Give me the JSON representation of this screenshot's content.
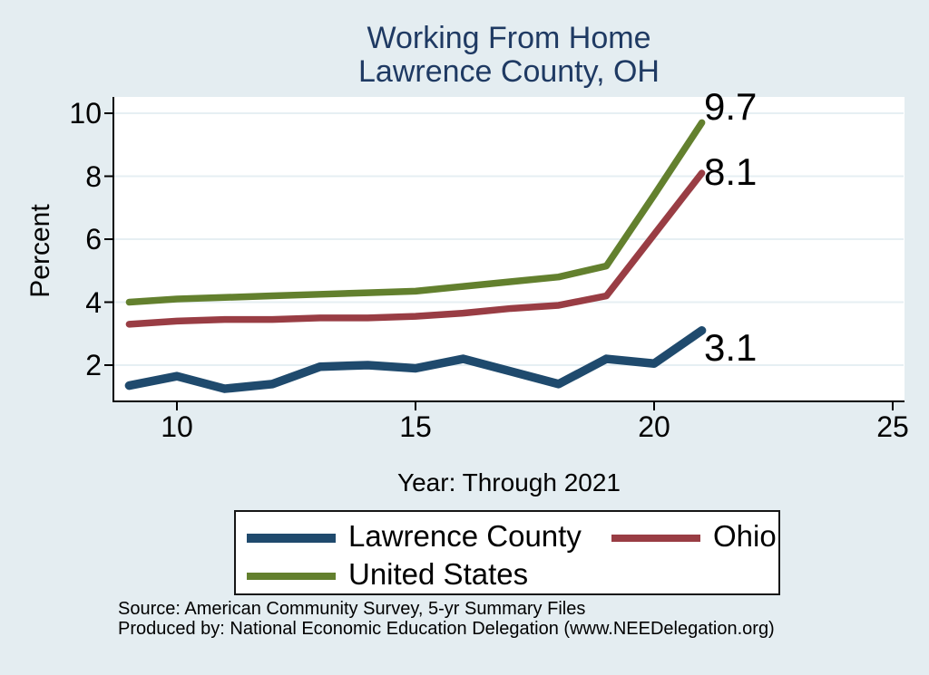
{
  "title": {
    "line1": "Working From Home",
    "line2": "Lawrence County, OH"
  },
  "axes": {
    "x_title": "Year: Through 2021",
    "y_title": "Percent"
  },
  "source": {
    "line1": "Source: American Community Survey, 5-yr Summary Files",
    "line2": "Produced by: National Economic Education Delegation (www.NEEDelegation.org)"
  },
  "colors": {
    "background": "#e4edf1",
    "plot_background": "#ffffff",
    "title_text": "#1f3a63",
    "gridline": "#e6eff3",
    "axis": "#000000",
    "lawrence_county": "#1f4a6d",
    "ohio": "#993d44",
    "united_states": "#63802e"
  },
  "chart_data": {
    "type": "line",
    "title": "Working From Home",
    "subtitle": "Lawrence County, OH",
    "xlabel": "Year: Through 2021",
    "ylabel": "Percent",
    "x": [
      9,
      10,
      11,
      12,
      13,
      14,
      15,
      16,
      17,
      18,
      19,
      20,
      21
    ],
    "x_ticks": [
      10,
      15,
      20,
      25
    ],
    "y_ticks": [
      2,
      4,
      6,
      8,
      10
    ],
    "xlim": [
      8.6,
      25.3
    ],
    "ylim": [
      0.85,
      10.55
    ],
    "grid": "horizontal",
    "legend_position": "bottom",
    "series": [
      {
        "name": "Lawrence County",
        "color": "#1f4a6d",
        "values": [
          1.35,
          1.65,
          1.25,
          1.4,
          1.95,
          2.0,
          1.9,
          2.2,
          1.8,
          1.4,
          2.2,
          2.05,
          3.1
        ],
        "end_label": "3.1"
      },
      {
        "name": "Ohio",
        "color": "#993d44",
        "values": [
          3.3,
          3.4,
          3.45,
          3.45,
          3.5,
          3.5,
          3.55,
          3.65,
          3.8,
          3.9,
          4.2,
          6.15,
          8.1
        ],
        "end_label": "8.1"
      },
      {
        "name": "United States",
        "color": "#63802e",
        "values": [
          4.0,
          4.1,
          4.15,
          4.2,
          4.25,
          4.3,
          4.35,
          4.5,
          4.65,
          4.8,
          5.15,
          7.4,
          9.7
        ],
        "end_label": "9.7"
      }
    ]
  }
}
